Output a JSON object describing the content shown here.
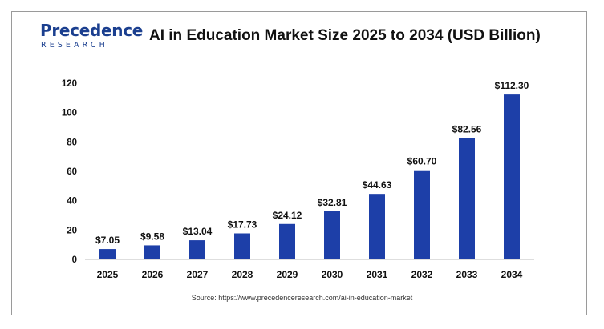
{
  "logo": {
    "word": "Precedence",
    "sub": "RESEARCH"
  },
  "chart_data": {
    "type": "bar",
    "title": "AI in Education Market Size 2025 to 2034 (USD Billion)",
    "categories": [
      "2025",
      "2026",
      "2027",
      "2028",
      "2029",
      "2030",
      "2031",
      "2032",
      "2033",
      "2034"
    ],
    "values": [
      7.05,
      9.58,
      13.04,
      17.73,
      24.12,
      32.81,
      44.63,
      60.7,
      82.56,
      112.3
    ],
    "data_labels": [
      "$7.05",
      "$9.58",
      "$13.04",
      "$17.73",
      "$24.12",
      "$32.81",
      "$44.63",
      "$60.70",
      "$82.56",
      "$112.30"
    ],
    "y_ticks": [
      0,
      20,
      40,
      60,
      80,
      100,
      120
    ],
    "ylim": [
      0,
      120
    ],
    "xlabel": "",
    "ylabel": "",
    "grid": false,
    "bar_color": "#1d3fa8"
  },
  "source": "Source: https://www.precedenceresearch.com/ai-in-education-market"
}
